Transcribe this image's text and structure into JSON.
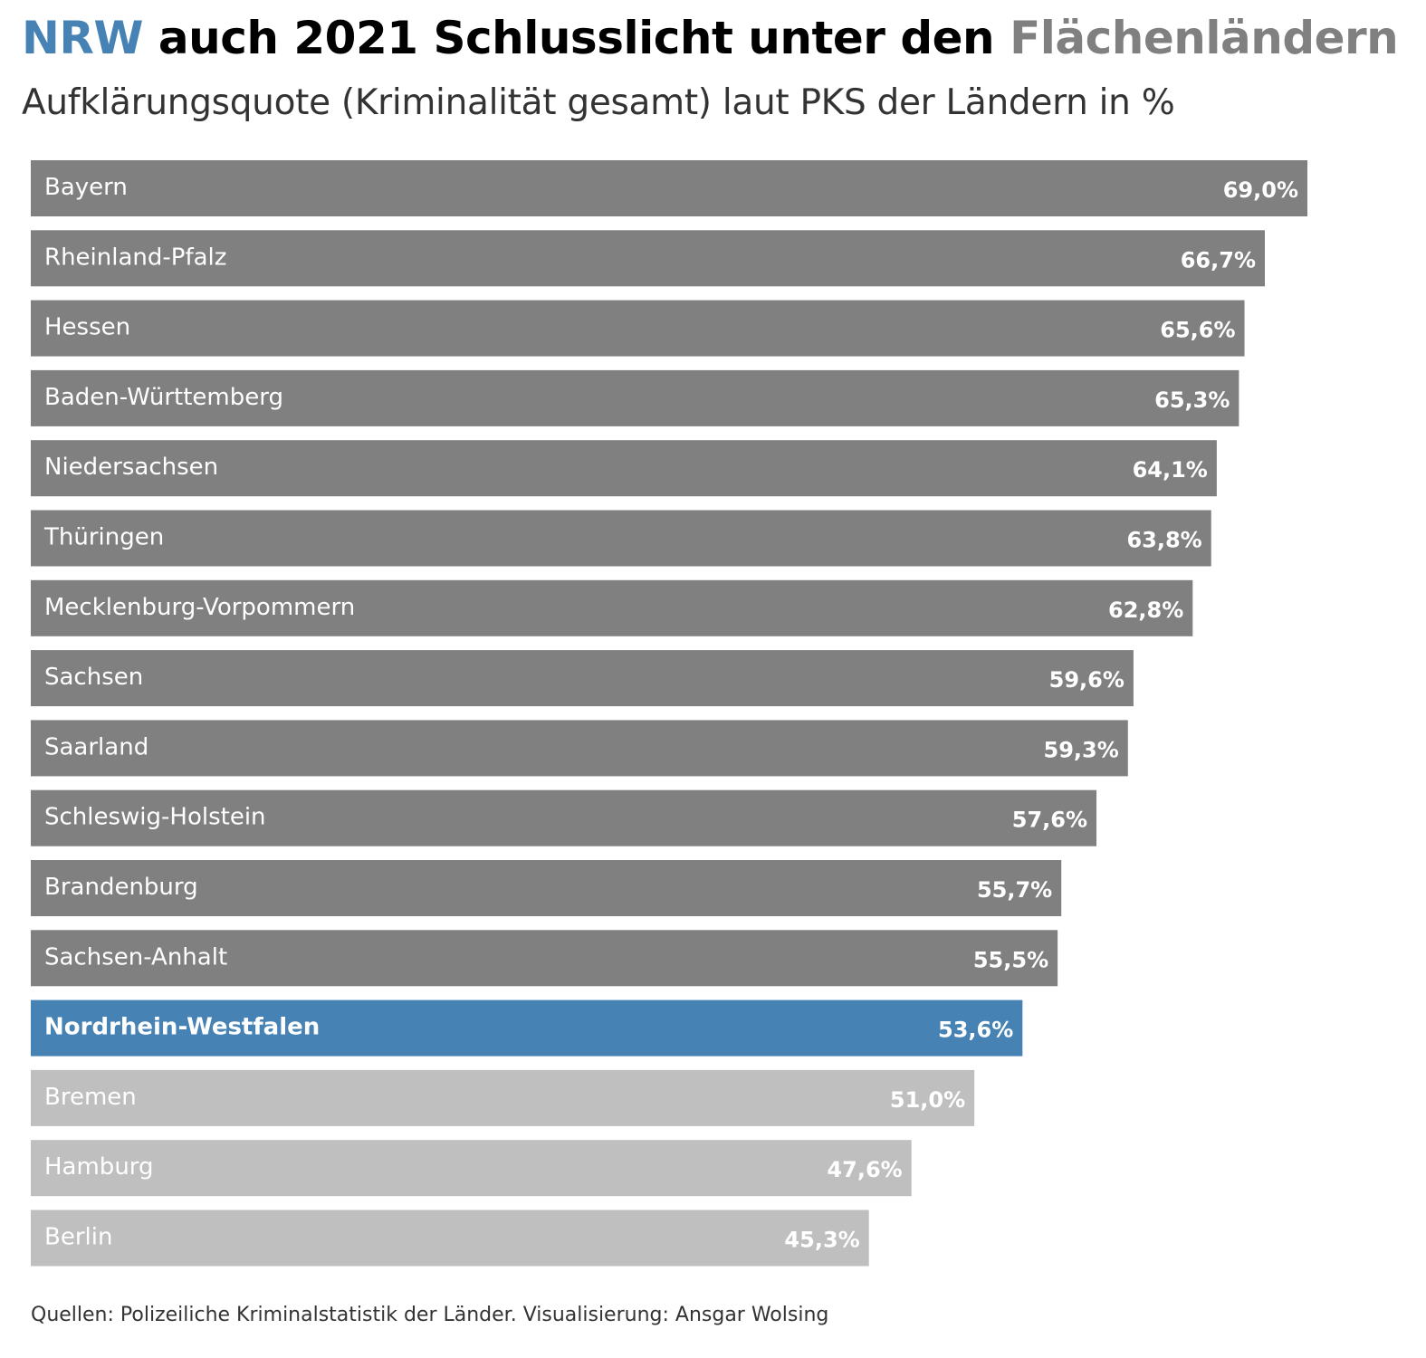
{
  "header": {
    "title_highlight": "NRW",
    "title_middle": " auch 2021 Schlusslicht unter den ",
    "title_grey": "Flächenländern",
    "subtitle": "Aufklärungsquote (Kriminalität gesamt) laut PKS der Ländern in %"
  },
  "footer": {
    "source": "Quellen: Polizeiliche Kriminalstatistik der Länder. Visualisierung: Ansgar Wolsing"
  },
  "colors": {
    "flaechenland": "#808080",
    "highlight": "#4682b4",
    "stadtstaat": "#bfbfbf",
    "label_text": "#ffffff"
  },
  "chart_data": {
    "type": "bar",
    "orientation": "horizontal",
    "title": "NRW auch 2021 Schlusslicht unter den Flächenländern",
    "subtitle": "Aufklärungsquote (Kriminalität gesamt) laut PKS der Ländern in %",
    "xlabel": "",
    "ylabel": "",
    "xlim": [
      0,
      69
    ],
    "grid": false,
    "legend": "none",
    "categories": [
      "Bayern",
      "Rheinland-Pfalz",
      "Hessen",
      "Baden-Württemberg",
      "Niedersachsen",
      "Thüringen",
      "Mecklenburg-Vorpommern",
      "Sachsen",
      "Saarland",
      "Schleswig-Holstein",
      "Brandenburg",
      "Sachsen-Anhalt",
      "Nordrhein-Westfalen",
      "Bremen",
      "Hamburg",
      "Berlin"
    ],
    "values": [
      69.0,
      66.7,
      65.6,
      65.3,
      64.1,
      63.8,
      62.8,
      59.6,
      59.3,
      57.6,
      55.7,
      55.5,
      53.6,
      51.0,
      47.6,
      45.3
    ],
    "value_labels": [
      "69,0%",
      "66,7%",
      "65,6%",
      "65,3%",
      "64,1%",
      "63,8%",
      "62,8%",
      "59,6%",
      "59,3%",
      "57,6%",
      "55,7%",
      "55,5%",
      "53,6%",
      "51,0%",
      "47,6%",
      "45,3%"
    ],
    "groups": [
      "flaechenland",
      "flaechenland",
      "flaechenland",
      "flaechenland",
      "flaechenland",
      "flaechenland",
      "flaechenland",
      "flaechenland",
      "flaechenland",
      "flaechenland",
      "flaechenland",
      "flaechenland",
      "highlight",
      "stadtstaat",
      "stadtstaat",
      "stadtstaat"
    ]
  }
}
